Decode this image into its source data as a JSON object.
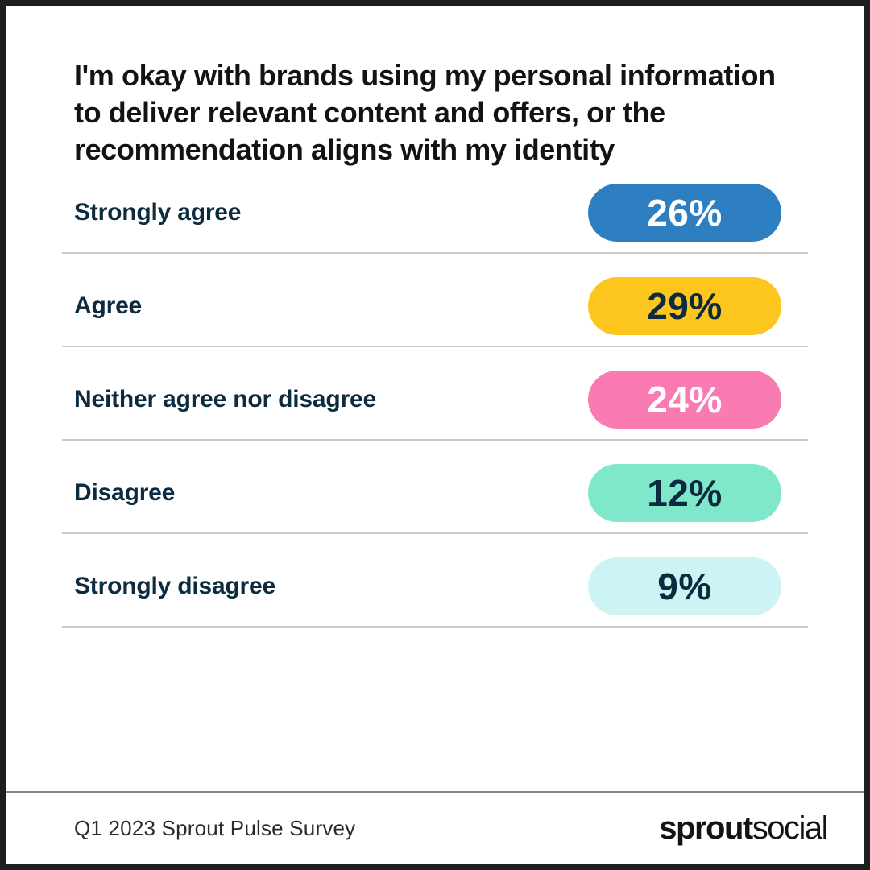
{
  "page": {
    "title": "I'm okay with brands using my personal information to deliver relevant content and offers, or the recommendation aligns with my identity"
  },
  "chart_data": {
    "type": "bar",
    "orientation": "horizontal-pictorial-pills",
    "title": "I'm okay with brands using my personal information to deliver relevant content and offers, or the recommendation aligns with my identity",
    "categories": [
      "Strongly agree",
      "Agree",
      "Neither agree nor disagree",
      "Disagree",
      "Strongly disagree"
    ],
    "values": [
      26,
      29,
      24,
      12,
      9
    ],
    "unit": "%",
    "bar_colors": [
      "#2D7FC1",
      "#FDC61E",
      "#F97BB1",
      "#7FE7CA",
      "#CDF3F5"
    ],
    "legend": "none",
    "grid": "row dividers only",
    "source": "Q1 2023 Sprout Pulse Survey"
  },
  "rows": [
    {
      "label": "Strongly agree",
      "value": "26%",
      "pill_color": "#2D7FC1",
      "value_color": "#FFFFFF"
    },
    {
      "label": "Agree",
      "value": "29%",
      "pill_color": "#FDC61E",
      "value_color": "#0D2B3E"
    },
    {
      "label": "Neither agree nor disagree",
      "value": "24%",
      "pill_color": "#F97BB1",
      "value_color": "#FFFFFF"
    },
    {
      "label": "Disagree",
      "value": "12%",
      "pill_color": "#7FE7CA",
      "value_color": "#0D2B3E"
    },
    {
      "label": "Strongly disagree",
      "value": "9%",
      "pill_color": "#CDF3F5",
      "value_color": "#0D2B3E"
    }
  ],
  "footer": {
    "source_label": "Q1 2023 Sprout Pulse Survey",
    "logo_bold": "sprout",
    "logo_light": "social"
  },
  "colors": {
    "label_navy": "#0D2B3E",
    "title_black": "#131313",
    "row_divider": "#CBCBCB",
    "footer_divider": "#858585",
    "frame_border": "#1E1E1E",
    "background": "#FFFFFF"
  }
}
